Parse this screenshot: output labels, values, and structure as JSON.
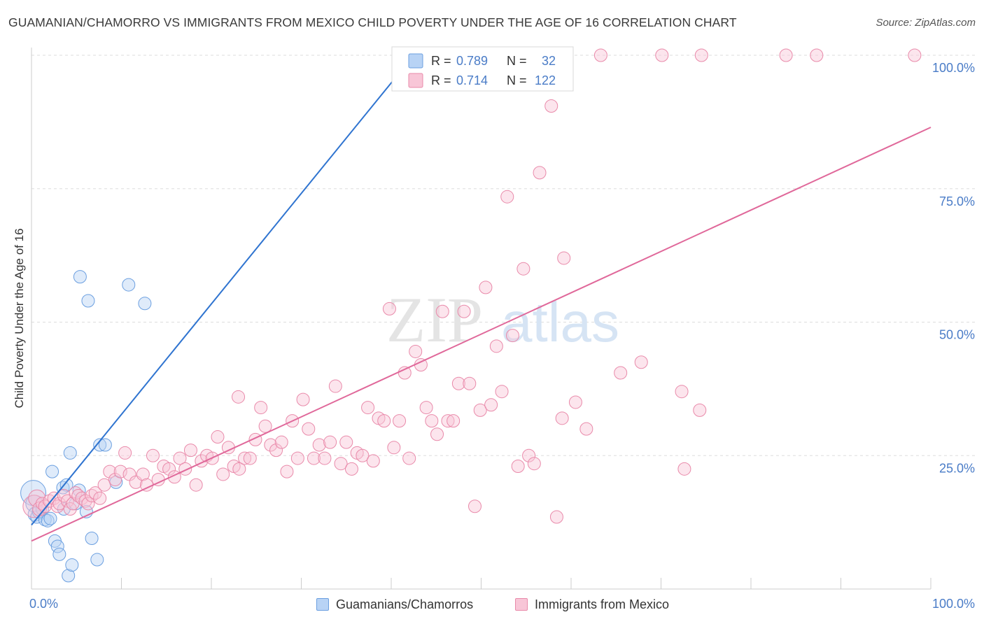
{
  "header": {
    "title": "GUAMANIAN/CHAMORRO VS IMMIGRANTS FROM MEXICO CHILD POVERTY UNDER THE AGE OF 16 CORRELATION CHART",
    "source": "Source: ZipAtlas.com"
  },
  "watermark": {
    "zip": "ZIP",
    "atlas": "atlas"
  },
  "colors": {
    "blue_fill": "#b8d3f5",
    "blue_stroke": "#6b9fe0",
    "blue_line": "#2f74d0",
    "pink_fill": "#f8c6d7",
    "pink_stroke": "#e98aaa",
    "pink_line": "#e0689a",
    "tick_label": "#4a7cc7",
    "grid": "#dddddd"
  },
  "legend_top": {
    "r_label": "R =",
    "n_label": "N =",
    "rows": [
      {
        "series": "blue",
        "r": "0.789",
        "n": "32"
      },
      {
        "series": "pink",
        "r": "0.714",
        "n": "122"
      }
    ]
  },
  "legend_bottom": {
    "items": [
      {
        "series": "blue",
        "label": "Guamanians/Chamorros"
      },
      {
        "series": "pink",
        "label": "Immigrants from Mexico"
      }
    ]
  },
  "chart_data": {
    "type": "scatter",
    "title": "GUAMANIAN/CHAMORRO VS IMMIGRANTS FROM MEXICO CHILD POVERTY UNDER THE AGE OF 16 CORRELATION CHART",
    "xlabel": "",
    "ylabel": "Child Poverty Under the Age of 16",
    "xlim": [
      0,
      100
    ],
    "ylim": [
      0,
      102
    ],
    "x_tick_labels": [
      {
        "value": 0,
        "label": "0.0%"
      },
      {
        "value": 100,
        "label": "100.0%"
      }
    ],
    "y_tick_labels": [
      {
        "value": 25,
        "label": "25.0%"
      },
      {
        "value": 50,
        "label": "50.0%"
      },
      {
        "value": 75,
        "label": "75.0%"
      },
      {
        "value": 100,
        "label": "100.0%"
      }
    ],
    "grid": "horizontal dashed",
    "legend_position": "top-center",
    "series": [
      {
        "name": "Guamanians/Chamorros",
        "color": "#6b9fe0",
        "r": 0.789,
        "n": 32,
        "trend": {
          "x": [
            0,
            42.5
          ],
          "y": [
            12.0,
            100.0
          ]
        },
        "points": [
          [
            0.2,
            18.0,
            18
          ],
          [
            0.3,
            16.0,
            12
          ],
          [
            0.4,
            14.0,
            10
          ],
          [
            0.6,
            13.5,
            9
          ],
          [
            0.8,
            14.5,
            9
          ],
          [
            1.2,
            15.0,
            9
          ],
          [
            1.5,
            13.0,
            9
          ],
          [
            1.8,
            12.8,
            9
          ],
          [
            2.1,
            13.2,
            9
          ],
          [
            2.3,
            22.0,
            9
          ],
          [
            2.6,
            9.0,
            9
          ],
          [
            2.9,
            8.0,
            9
          ],
          [
            3.1,
            6.5,
            9
          ],
          [
            3.5,
            19.0,
            9
          ],
          [
            3.6,
            15.0,
            9
          ],
          [
            3.9,
            19.5,
            9
          ],
          [
            4.1,
            2.5,
            9
          ],
          [
            4.3,
            25.5,
            9
          ],
          [
            4.5,
            4.5,
            9
          ],
          [
            4.9,
            16.0,
            9
          ],
          [
            5.3,
            18.5,
            9
          ],
          [
            5.4,
            58.5,
            9
          ],
          [
            6.1,
            14.5,
            9
          ],
          [
            6.3,
            54.0,
            9
          ],
          [
            6.7,
            9.5,
            9
          ],
          [
            7.3,
            5.5,
            9
          ],
          [
            7.6,
            27.0,
            9
          ],
          [
            8.2,
            27.0,
            9
          ],
          [
            9.4,
            20.0,
            9
          ],
          [
            10.8,
            57.0,
            9
          ],
          [
            12.6,
            53.5,
            9
          ],
          [
            47.9,
            100.0,
            9
          ]
        ]
      },
      {
        "name": "Immigrants from Mexico",
        "color": "#e98aaa",
        "r": 0.714,
        "n": 122,
        "trend": {
          "x": [
            0,
            100
          ],
          "y": [
            9.0,
            86.5
          ]
        },
        "points": [
          [
            0.3,
            15.5,
            16
          ],
          [
            0.6,
            17.0,
            12
          ],
          [
            0.9,
            15.0,
            10
          ],
          [
            1.2,
            16.0,
            9
          ],
          [
            1.5,
            15.5,
            9
          ],
          [
            2.0,
            16.5,
            9
          ],
          [
            2.5,
            17.0,
            9
          ],
          [
            2.9,
            15.5,
            9
          ],
          [
            3.1,
            16.0,
            9
          ],
          [
            3.6,
            17.5,
            9
          ],
          [
            4.0,
            16.5,
            9
          ],
          [
            4.3,
            15.0,
            9
          ],
          [
            4.6,
            16.0,
            9
          ],
          [
            4.9,
            18.0,
            9
          ],
          [
            5.2,
            17.5,
            9
          ],
          [
            5.6,
            17.0,
            9
          ],
          [
            6.0,
            16.5,
            9
          ],
          [
            6.3,
            16.0,
            9
          ],
          [
            6.7,
            17.5,
            9
          ],
          [
            7.1,
            18.0,
            9
          ],
          [
            7.6,
            17.0,
            9
          ],
          [
            8.1,
            19.5,
            9
          ],
          [
            8.7,
            22.0,
            9
          ],
          [
            9.3,
            20.5,
            9
          ],
          [
            9.9,
            22.0,
            9
          ],
          [
            10.4,
            25.5,
            9
          ],
          [
            10.9,
            21.5,
            9
          ],
          [
            11.6,
            20.0,
            9
          ],
          [
            12.4,
            21.5,
            9
          ],
          [
            12.8,
            19.5,
            9
          ],
          [
            13.5,
            25.0,
            9
          ],
          [
            14.1,
            20.5,
            9
          ],
          [
            14.7,
            23.0,
            9
          ],
          [
            15.3,
            22.5,
            9
          ],
          [
            15.9,
            21.0,
            9
          ],
          [
            16.5,
            24.5,
            9
          ],
          [
            17.1,
            22.5,
            9
          ],
          [
            17.7,
            26.0,
            9
          ],
          [
            18.3,
            19.5,
            9
          ],
          [
            18.9,
            24.0,
            9
          ],
          [
            19.5,
            25.0,
            9
          ],
          [
            20.1,
            24.5,
            9
          ],
          [
            20.7,
            28.5,
            9
          ],
          [
            21.3,
            21.5,
            9
          ],
          [
            21.9,
            26.5,
            9
          ],
          [
            22.5,
            23.0,
            9
          ],
          [
            23.0,
            36.0,
            9
          ],
          [
            23.1,
            22.5,
            9
          ],
          [
            23.7,
            24.5,
            9
          ],
          [
            24.3,
            24.5,
            9
          ],
          [
            24.9,
            28.0,
            9
          ],
          [
            25.5,
            34.0,
            9
          ],
          [
            26.0,
            30.5,
            9
          ],
          [
            26.6,
            27.0,
            9
          ],
          [
            27.2,
            26.0,
            9
          ],
          [
            27.8,
            27.5,
            9
          ],
          [
            28.4,
            22.0,
            9
          ],
          [
            29.0,
            31.5,
            9
          ],
          [
            29.6,
            24.5,
            9
          ],
          [
            30.2,
            35.5,
            9
          ],
          [
            30.8,
            30.0,
            9
          ],
          [
            31.4,
            24.5,
            9
          ],
          [
            32.0,
            27.0,
            9
          ],
          [
            32.6,
            24.5,
            9
          ],
          [
            33.2,
            27.5,
            9
          ],
          [
            33.8,
            38.0,
            9
          ],
          [
            34.4,
            23.5,
            9
          ],
          [
            35.0,
            27.5,
            9
          ],
          [
            35.6,
            22.5,
            9
          ],
          [
            36.2,
            25.5,
            9
          ],
          [
            36.8,
            25.0,
            9
          ],
          [
            37.4,
            34.0,
            9
          ],
          [
            38.0,
            24.0,
            9
          ],
          [
            38.6,
            32.0,
            9
          ],
          [
            39.2,
            31.5,
            9
          ],
          [
            39.8,
            52.5,
            9
          ],
          [
            40.3,
            26.5,
            9
          ],
          [
            40.9,
            31.5,
            9
          ],
          [
            41.5,
            40.5,
            9
          ],
          [
            42.0,
            24.5,
            9
          ],
          [
            42.7,
            44.5,
            9
          ],
          [
            43.3,
            42.0,
            9
          ],
          [
            43.9,
            34.0,
            9
          ],
          [
            44.5,
            31.5,
            9
          ],
          [
            45.1,
            29.0,
            9
          ],
          [
            45.7,
            52.0,
            9
          ],
          [
            46.3,
            31.5,
            9
          ],
          [
            46.9,
            31.5,
            9
          ],
          [
            47.5,
            38.5,
            9
          ],
          [
            48.1,
            52.0,
            9
          ],
          [
            48.7,
            38.5,
            9
          ],
          [
            49.3,
            15.5,
            9
          ],
          [
            49.9,
            33.5,
            9
          ],
          [
            50.5,
            56.5,
            9
          ],
          [
            51.1,
            34.5,
            9
          ],
          [
            51.7,
            45.5,
            9
          ],
          [
            52.3,
            37.0,
            9
          ],
          [
            52.9,
            73.5,
            9
          ],
          [
            53.5,
            47.5,
            9
          ],
          [
            54.1,
            23.0,
            9
          ],
          [
            54.7,
            60.0,
            9
          ],
          [
            55.3,
            25.0,
            9
          ],
          [
            55.9,
            23.5,
            9
          ],
          [
            56.5,
            78.0,
            9
          ],
          [
            57.1,
            100.0,
            9
          ],
          [
            57.8,
            90.5,
            9
          ],
          [
            58.4,
            13.5,
            9
          ],
          [
            59.0,
            32.0,
            9
          ],
          [
            59.2,
            62.0,
            9
          ],
          [
            60.5,
            35.0,
            9
          ],
          [
            61.7,
            30.0,
            9
          ],
          [
            63.3,
            100.0,
            9
          ],
          [
            65.5,
            40.5,
            9
          ],
          [
            67.8,
            42.5,
            9
          ],
          [
            70.1,
            100.0,
            9
          ],
          [
            72.3,
            37.0,
            9
          ],
          [
            72.6,
            22.5,
            9
          ],
          [
            74.3,
            33.5,
            9
          ],
          [
            74.5,
            100.0,
            9
          ],
          [
            83.9,
            100.0,
            9
          ],
          [
            87.3,
            100.0,
            9
          ],
          [
            98.2,
            100.0,
            9
          ]
        ]
      }
    ]
  }
}
